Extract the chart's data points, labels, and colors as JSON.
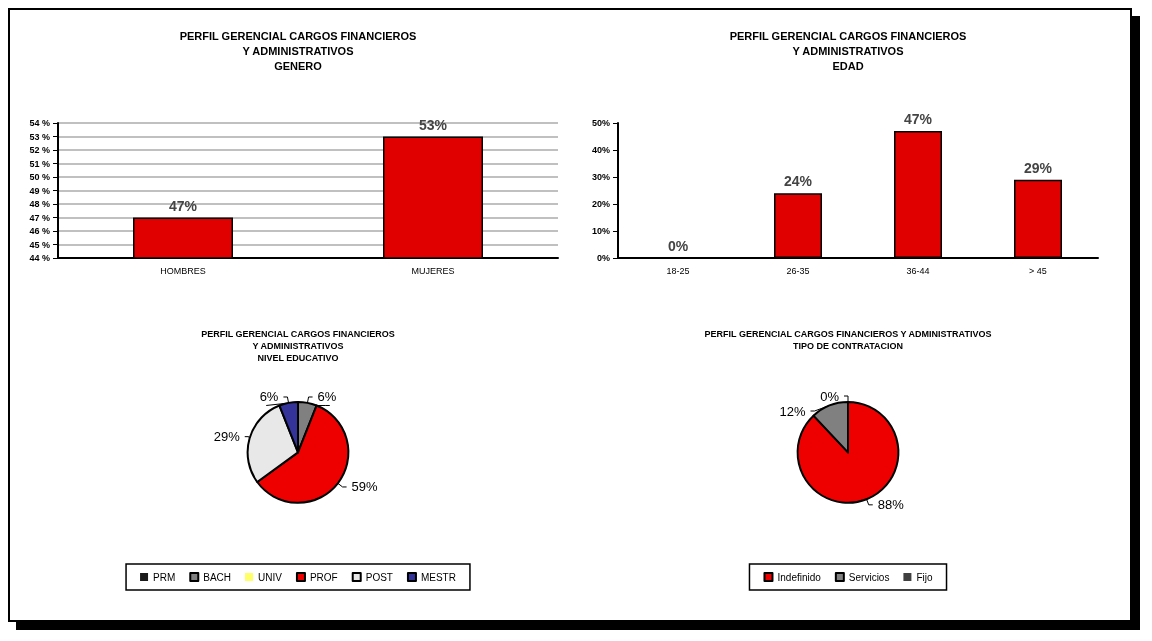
{
  "chart_data": [
    {
      "type": "bar",
      "title": "PERFIL GERENCIAL CARGOS FINANCIEROS\nY ADMINISTRATIVOS\nGENERO",
      "categories": [
        "HOMBRES",
        "MUJERES"
      ],
      "values": [
        47,
        53
      ],
      "value_labels": [
        "47%",
        "53%"
      ],
      "color": "#e00000",
      "ylim": [
        44,
        54
      ],
      "yticks": [
        {
          "value": 44,
          "label": "44 %"
        },
        {
          "value": 45,
          "label": "45 %"
        },
        {
          "value": 46,
          "label": "46 %"
        },
        {
          "value": 47,
          "label": "47 %"
        },
        {
          "value": 48,
          "label": "48 %"
        },
        {
          "value": 49,
          "label": "49 %"
        },
        {
          "value": 50,
          "label": "50 %"
        },
        {
          "value": 51,
          "label": "51 %"
        },
        {
          "value": 52,
          "label": "52 %"
        },
        {
          "value": 53,
          "label": "53 %"
        },
        {
          "value": 54,
          "label": "54 %"
        }
      ],
      "grid": "y",
      "legend": false
    },
    {
      "type": "bar",
      "title": "PERFIL GERENCIAL CARGOS FINANCIEROS\nY ADMINISTRATIVOS\nEDAD",
      "categories": [
        "18-25",
        "26-35",
        "36-44",
        "> 45"
      ],
      "values": [
        0,
        24,
        47,
        29
      ],
      "value_labels": [
        "0%",
        "24%",
        "47%",
        "29%"
      ],
      "color": "#e00000",
      "ylim": [
        0,
        50
      ],
      "yticks": [
        {
          "value": 0,
          "label": "0%"
        },
        {
          "value": 10,
          "label": "10%"
        },
        {
          "value": 20,
          "label": "20%"
        },
        {
          "value": 30,
          "label": "30%"
        },
        {
          "value": 40,
          "label": "40%"
        },
        {
          "value": 50,
          "label": "50%"
        }
      ],
      "grid": false,
      "legend": false
    },
    {
      "type": "pie",
      "title": "PERFIL GERENCIAL CARGOS FINANCIEROS\nY ADMINISTRATIVOS\nNIVEL EDUCATIVO",
      "categories": [
        "PRM",
        "BACH",
        "UNIV",
        "PROF",
        "POST",
        "MESTR"
      ],
      "values": [
        0,
        6,
        0,
        59,
        29,
        6
      ],
      "value_labels": [
        null,
        "6%",
        null,
        "59%",
        "29%",
        "6%"
      ],
      "colors": [
        "#1a1a1a",
        "#808080",
        "#ffff66",
        "#ee0000",
        "#e8e8e8",
        "#333399"
      ],
      "legend": "bottom"
    },
    {
      "type": "pie",
      "title": "PERFIL GERENCIAL CARGOS FINANCIEROS Y ADMINISTRATIVOS\nTIPO DE CONTRATACION",
      "categories": [
        "Indefinido",
        "Servicios",
        "Fijo"
      ],
      "values": [
        88,
        12,
        0
      ],
      "value_labels": [
        "88%",
        "12%",
        "0%"
      ],
      "colors": [
        "#ee0000",
        "#808080",
        "#404040"
      ],
      "legend": "bottom"
    }
  ]
}
